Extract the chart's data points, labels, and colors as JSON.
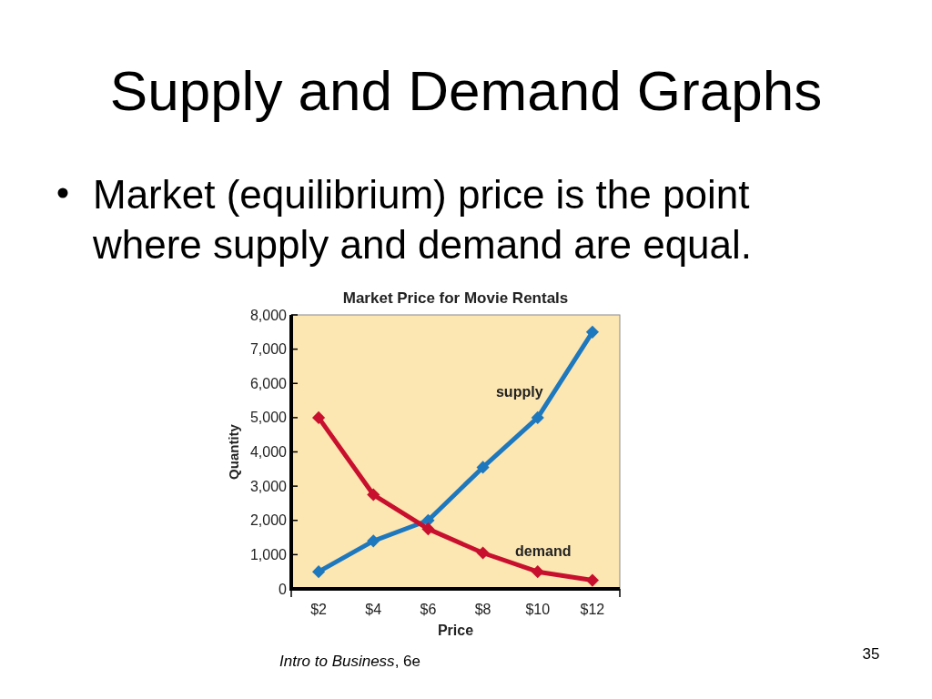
{
  "chart_data": {
    "type": "line",
    "title": "Market Price for Movie Rentals",
    "xlabel": "Price",
    "ylabel": "Quantity",
    "categories": [
      "$2",
      "$4",
      "$6",
      "$8",
      "$10",
      "$12"
    ],
    "series": [
      {
        "name": "supply",
        "color": "#1e78be",
        "values": [
          500,
          1400,
          2000,
          3550,
          5000,
          7500
        ]
      },
      {
        "name": "demand",
        "color": "#c8102e",
        "values": [
          5000,
          2750,
          1750,
          1050,
          500,
          250
        ]
      }
    ],
    "ylim": [
      0,
      8000
    ],
    "yticks": [
      0,
      {
        "value": 1000,
        "label": "1,000"
      },
      {
        "value": 2000,
        "label": "2,000"
      },
      {
        "value": 3000,
        "label": "3,000"
      },
      {
        "value": 4000,
        "label": "4,000"
      },
      {
        "value": 5000,
        "label": "5,000"
      },
      {
        "value": 6000,
        "label": "6,000"
      },
      {
        "value": 7000,
        "label": "7,000"
      },
      {
        "value": 8000,
        "label": "8,000"
      }
    ],
    "marker": "diamond",
    "line_style": "solid",
    "annotations": [
      "Supply and Demand Graphs",
      "Market (equilibrium) price is the point where supply and demand are equal.",
      "Intro to Business, 6e",
      "35"
    ]
  }
}
